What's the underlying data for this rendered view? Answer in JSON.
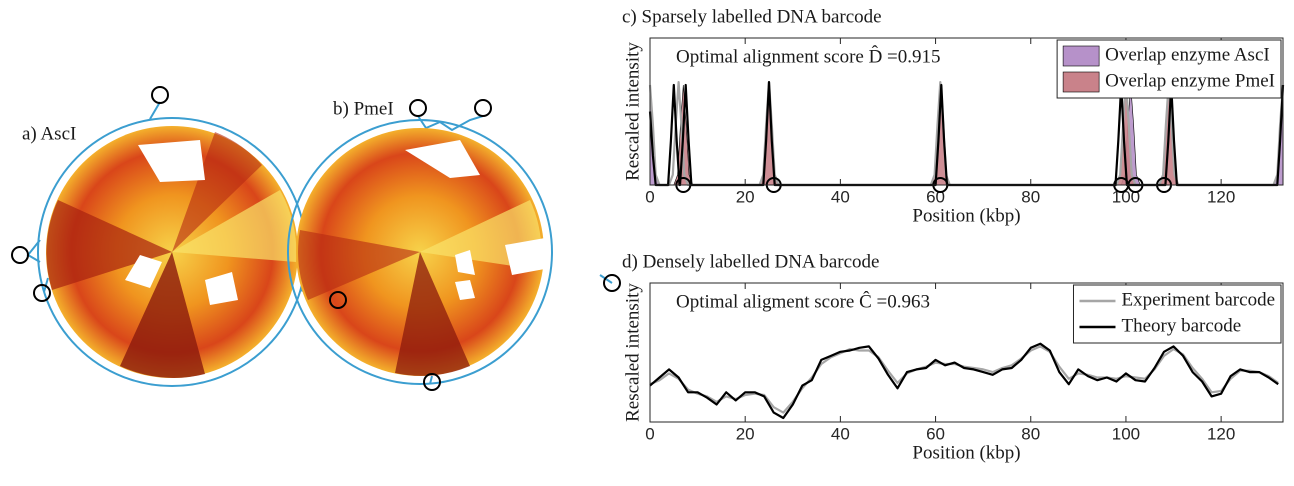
{
  "panels": [
    {
      "label": "a) AscI"
    },
    {
      "label": "b) PmeI"
    }
  ],
  "chart_data": [
    {
      "type": "line",
      "title": "c) Sparsely labelled DNA barcode",
      "xlabel": "Position (kbp)",
      "ylabel": "Rescaled intensity",
      "annotation": "Optimal alignment score D̂ =0.915",
      "xlim": [
        0,
        133
      ],
      "ylim": [
        0,
        1
      ],
      "xticks": [
        0,
        20,
        40,
        60,
        80,
        100,
        120
      ],
      "legend": "northeast",
      "series": [
        {
          "name": "Overlap enzyme AscI",
          "color": "#b691c9",
          "area": true,
          "x": [
            0,
            0.6,
            1.2,
            2,
            99,
            99.8,
            100.4,
            101,
            101.6,
            102.2,
            103,
            131,
            131.8,
            132.4,
            133
          ],
          "values": [
            0.68,
            0.41,
            0.07,
            0,
            0,
            0.07,
            0.41,
            0.68,
            0.41,
            0.07,
            0,
            0,
            0.07,
            0.41,
            0.68
          ]
        },
        {
          "name": "Overlap enzyme PmeI",
          "color": "#c9828a",
          "area": true,
          "x": [
            0,
            5,
            5.8,
            6.4,
            7,
            7.6,
            8.2,
            9,
            23,
            23.8,
            24.4,
            25,
            25.6,
            26.2,
            27,
            59,
            59.8,
            60.4,
            61,
            61.6,
            62.2,
            63,
            98,
            98.8,
            99.4,
            100,
            100.6,
            101.2,
            102,
            107,
            107.8,
            108.4,
            109,
            109.6,
            110.2,
            111,
            133
          ],
          "values": [
            0,
            0,
            0.07,
            0.41,
            0.68,
            0.41,
            0.07,
            0,
            0,
            0.07,
            0.41,
            0.68,
            0.41,
            0.07,
            0,
            0,
            0.07,
            0.41,
            0.68,
            0.41,
            0.07,
            0,
            0,
            0.07,
            0.41,
            0.68,
            0.41,
            0.07,
            0,
            0,
            0.07,
            0.41,
            0.68,
            0.41,
            0.07,
            0,
            0
          ]
        },
        {
          "color": "#a6a6a6",
          "x": [
            0,
            0.6,
            1.2,
            2,
            4,
            4.8,
            5.4,
            6,
            6.6,
            7.2,
            8,
            23,
            23.8,
            24.4,
            25,
            25.6,
            26.2,
            27,
            59,
            59.8,
            60.4,
            61,
            61.6,
            62.2,
            63,
            98,
            98.8,
            99.4,
            100,
            100.6,
            101.2,
            102,
            107,
            107.8,
            108.4,
            109,
            109.6,
            110.2,
            111,
            131,
            131.8,
            132.4,
            133
          ],
          "values": [
            0.68,
            0.41,
            0.07,
            0,
            0,
            0.07,
            0.41,
            0.7,
            0.41,
            0.07,
            0,
            0,
            0.07,
            0.41,
            0.7,
            0.41,
            0.07,
            0,
            0,
            0.07,
            0.41,
            0.7,
            0.41,
            0.07,
            0,
            0,
            0.07,
            0.41,
            0.7,
            0.41,
            0.07,
            0,
            0,
            0.07,
            0.41,
            0.7,
            0.41,
            0.07,
            0,
            0,
            0.07,
            0.41,
            0.68
          ]
        },
        {
          "color": "#000000",
          "x": [
            0,
            0.6,
            1.2,
            3.8,
            4.4,
            5,
            5.6,
            6.2,
            6.3,
            6.9,
            7.5,
            8.1,
            8.7,
            23.8,
            24.4,
            25,
            25.6,
            26.2,
            60,
            60.6,
            61.2,
            61.8,
            62.4,
            97.8,
            98.4,
            99,
            99.6,
            100.2,
            108.3,
            108.9,
            109.5,
            110.1,
            110.7,
            131.8,
            132.4,
            133
          ],
          "values": [
            0.5,
            0.2,
            0,
            0,
            0.3,
            0.68,
            0.3,
            0,
            0,
            0.3,
            0.68,
            0.3,
            0,
            0,
            0.3,
            0.7,
            0.3,
            0,
            0,
            0.3,
            0.68,
            0.3,
            0,
            0,
            0.3,
            0.68,
            0.3,
            0,
            0,
            0.3,
            0.68,
            0.3,
            0,
            0,
            0.3,
            0.68
          ]
        }
      ],
      "markers": {
        "x": [
          7,
          26,
          61,
          99,
          102,
          108
        ],
        "values": [
          0,
          0,
          0,
          0,
          0,
          0
        ]
      }
    },
    {
      "type": "line",
      "title": "d) Densely labelled DNA barcode",
      "xlabel": "Position (kbp)",
      "ylabel": "Rescaled intensity",
      "annotation": "Optimal aligment score Ĉ =0.963",
      "xlim": [
        0,
        133
      ],
      "ylim": [
        -0.03,
        1
      ],
      "xticks": [
        0,
        20,
        40,
        60,
        80,
        100,
        120
      ],
      "legend": "northeast",
      "x": [
        0,
        2,
        4,
        6,
        8,
        10,
        12,
        14,
        16,
        18,
        20,
        22,
        24,
        26,
        28,
        30,
        32,
        34,
        36,
        38,
        40,
        42,
        44,
        46,
        48,
        50,
        52,
        54,
        56,
        58,
        60,
        62,
        64,
        66,
        68,
        70,
        72,
        74,
        76,
        78,
        80,
        82,
        84,
        86,
        88,
        90,
        92,
        94,
        96,
        98,
        100,
        102,
        104,
        106,
        108,
        110,
        112,
        114,
        116,
        118,
        120,
        122,
        124,
        126,
        128,
        130,
        132
      ],
      "series": [
        {
          "name": "Experiment barcode",
          "color": "#a6a6a6",
          "values": [
            0.25,
            0.28,
            0.33,
            0.29,
            0.21,
            0.18,
            0.16,
            0.12,
            0.16,
            0.14,
            0.17,
            0.18,
            0.17,
            0.08,
            0.04,
            0.12,
            0.22,
            0.3,
            0.4,
            0.45,
            0.48,
            0.51,
            0.5,
            0.5,
            0.45,
            0.35,
            0.26,
            0.33,
            0.36,
            0.38,
            0.41,
            0.4,
            0.4,
            0.38,
            0.37,
            0.36,
            0.34,
            0.37,
            0.39,
            0.44,
            0.5,
            0.53,
            0.49,
            0.38,
            0.29,
            0.33,
            0.32,
            0.3,
            0.3,
            0.29,
            0.31,
            0.3,
            0.29,
            0.36,
            0.46,
            0.51,
            0.47,
            0.37,
            0.29,
            0.19,
            0.2,
            0.29,
            0.35,
            0.35,
            0.34,
            0.31,
            0.26
          ]
        },
        {
          "name": "Theory barcode",
          "color": "#000000",
          "values": [
            0.24,
            0.3,
            0.36,
            0.3,
            0.19,
            0.19,
            0.15,
            0.1,
            0.19,
            0.13,
            0.19,
            0.19,
            0.16,
            0.04,
            0,
            0.1,
            0.24,
            0.28,
            0.43,
            0.46,
            0.49,
            0.5,
            0.52,
            0.53,
            0.44,
            0.32,
            0.22,
            0.34,
            0.36,
            0.37,
            0.43,
            0.39,
            0.41,
            0.37,
            0.36,
            0.34,
            0.32,
            0.36,
            0.37,
            0.43,
            0.52,
            0.55,
            0.5,
            0.34,
            0.25,
            0.36,
            0.31,
            0.28,
            0.3,
            0.27,
            0.33,
            0.28,
            0.27,
            0.37,
            0.49,
            0.53,
            0.46,
            0.34,
            0.27,
            0.16,
            0.18,
            0.31,
            0.36,
            0.34,
            0.34,
            0.3,
            0.25
          ]
        }
      ]
    }
  ]
}
